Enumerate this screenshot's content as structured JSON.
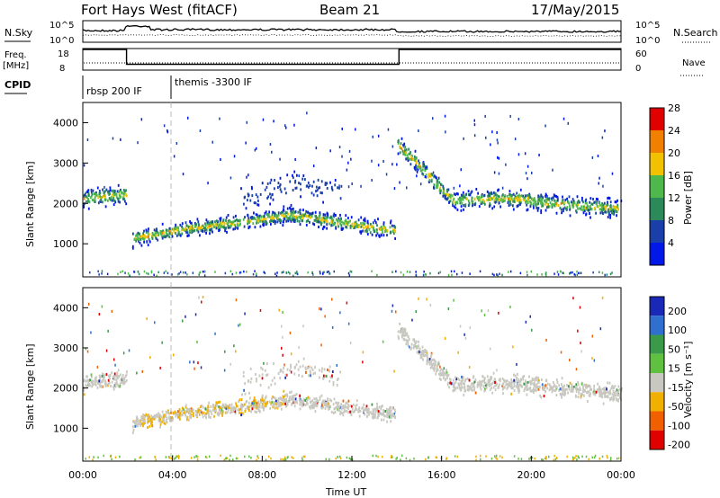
{
  "header": {
    "station": "Fort Hays West (fitACF)",
    "beam": "Beam 21",
    "date": "17/May/2015"
  },
  "top_panels": {
    "nsky_label": "N.Sky",
    "nsearch_label": "N.Search",
    "freq_label_1": "Freq.",
    "freq_label_2": "[MHz]",
    "nave_label": "Nave",
    "cpid_label": "CPID",
    "nsky_ticks": [
      "10^5",
      "10^0"
    ],
    "nsearch_ticks": [
      "10^5",
      "10^0"
    ],
    "freq_ticks": [
      "18",
      "8"
    ],
    "nave_ticks": [
      "60",
      "0"
    ],
    "cpid_segments": [
      {
        "label": "rbsp 200 IF",
        "start_hour": 0,
        "end_hour": 3.9
      },
      {
        "label": "themis -3300 IF",
        "start_hour": 3.9,
        "end_hour": 24
      }
    ],
    "freq_series": [
      {
        "hour": 0,
        "mhz": 18
      },
      {
        "hour": 1.95,
        "mhz": 18
      },
      {
        "hour": 1.95,
        "mhz": 10.5
      },
      {
        "hour": 14.1,
        "mhz": 10.5
      },
      {
        "hour": 14.1,
        "mhz": 18
      },
      {
        "hour": 24,
        "mhz": 18
      }
    ]
  },
  "chart_data": [
    {
      "type": "heatmap",
      "panel": "power",
      "ylabel": "Slant Range [km]",
      "ylim": [
        180,
        4500
      ],
      "y_ticks": [
        "1000",
        "2000",
        "3000",
        "4000"
      ],
      "colorbar_label": "Power [dB]",
      "colorbar_ticks": [
        "4",
        "8",
        "12",
        "16",
        "20",
        "24",
        "28"
      ],
      "colors": [
        "#0018e8",
        "#1a3fa8",
        "#2c8a5a",
        "#4fb84a",
        "#f2c200",
        "#f08000",
        "#e00000"
      ],
      "bands": [
        {
          "start_hour": 0,
          "end_hour": 1.95,
          "center_km": [
            2150,
            2200,
            2250
          ],
          "width_km": 300
        },
        {
          "start_hour": 2.2,
          "end_hour": 13.9,
          "center_km": [
            1150,
            1400,
            1550,
            1750,
            1550,
            1350
          ],
          "width_km": 250
        },
        {
          "start_hour": 14.0,
          "end_hour": 24,
          "center_km": [
            3500,
            2100,
            2150,
            2000,
            1900
          ],
          "width_km": 300
        },
        {
          "start_hour": 7,
          "end_hour": 11.5,
          "center_km": [
            2100,
            2500,
            2300
          ],
          "width_km": 400
        }
      ]
    },
    {
      "type": "heatmap",
      "panel": "velocity",
      "ylabel": "Slant Range [km]",
      "xlabel": "Time UT",
      "ylim": [
        180,
        4500
      ],
      "y_ticks": [
        "1000",
        "2000",
        "3000",
        "4000"
      ],
      "x_ticks": [
        "00:00",
        "04:00",
        "08:00",
        "12:00",
        "16:00",
        "20:00",
        "00:00"
      ],
      "colorbar_label": "Velocity [m s⁻¹]",
      "colorbar_ticks": [
        "200",
        "100",
        "50",
        "15",
        "-15",
        "-50",
        "-100",
        "-200"
      ],
      "colors": [
        "#1a28b8",
        "#2e6fd0",
        "#3a9a4a",
        "#60c040",
        "#c8c8c0",
        "#f0b000",
        "#f06000",
        "#e00000"
      ],
      "ground_scatter_color": "#c8c8c0"
    }
  ]
}
